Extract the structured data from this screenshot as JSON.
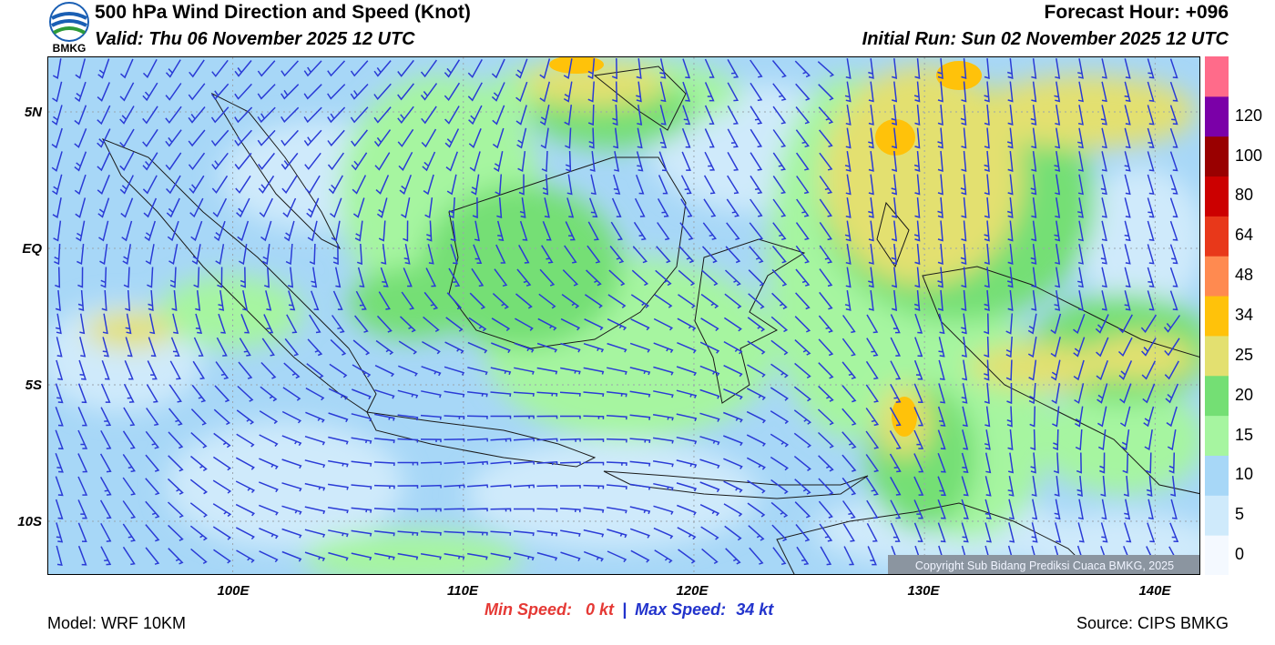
{
  "header": {
    "title": "500 hPa Wind Direction and Speed (Knot)",
    "valid": "Valid: Thu 06 November 2025 12 UTC",
    "forecast_hour": "Forecast Hour: +096",
    "initial_run": "Initial Run: Sun 02 November 2025 12 UTC"
  },
  "logo": {
    "text": "BMKG"
  },
  "map": {
    "lat_range": [
      -12,
      7
    ],
    "lon_range": [
      92,
      142
    ],
    "lat_labels": [
      "5N",
      "EQ",
      "5S",
      "10S"
    ],
    "lon_labels": [
      "100E",
      "110E",
      "120E",
      "130E",
      "140E"
    ],
    "copyright": "Copyright Sub Bidang Prediksi Cuaca BMKG, 2025",
    "grid_lines": true,
    "barb_color": "#2a3bd6"
  },
  "colorbar": {
    "units": "Knot",
    "levels": [
      "0",
      "5",
      "10",
      "15",
      "20",
      "25",
      "34",
      "48",
      "64",
      "80",
      "100",
      "120"
    ],
    "colors": [
      "#f4f9ff",
      "#cfeafb",
      "#a7d7f7",
      "#a6f5a0",
      "#74df74",
      "#e3e070",
      "#ffc20a",
      "#ff8a50",
      "#e8381a",
      "#cc0000",
      "#990000",
      "#7b00a8",
      "#ff6b8a"
    ]
  },
  "footer": {
    "model": "Model: WRF 10KM",
    "source": "Source: CIPS BMKG",
    "min_label": "Min Speed:",
    "min_value": "0 kt",
    "separator": "|",
    "max_label": "Max Speed:",
    "max_value": "34 kt"
  }
}
